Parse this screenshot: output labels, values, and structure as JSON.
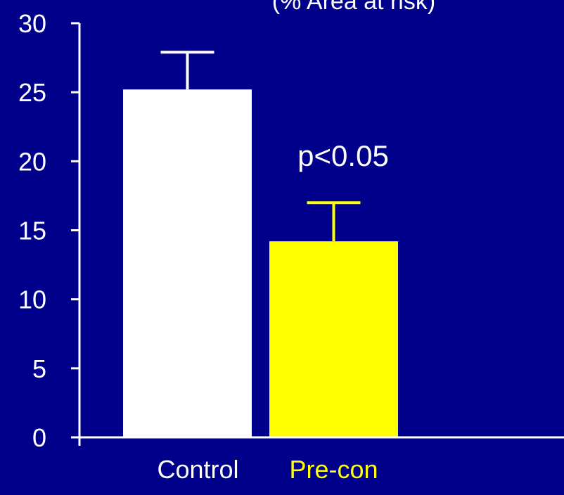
{
  "colors": {
    "background": "#00008b",
    "axis": "#ffffff",
    "text": "#ffffff",
    "control_bar": "#ffffff",
    "precon_bar": "#ffff00",
    "annotation": "#ffffff"
  },
  "chart_data": {
    "type": "bar",
    "ylabel": "(% Area at risk)",
    "ylim": [
      0,
      30
    ],
    "yticks": [
      0,
      5,
      10,
      15,
      20,
      25,
      30
    ],
    "categories": [
      "Control",
      "Pre-con"
    ],
    "series": [
      {
        "values": [
          25.2,
          14.2
        ],
        "errors": [
          2.7,
          2.8
        ]
      }
    ],
    "bar_colors": [
      "#ffffff",
      "#ffff00"
    ],
    "label_colors": [
      "#ffffff",
      "#ffff00"
    ],
    "annotation": "p<0.05",
    "grid": false
  }
}
